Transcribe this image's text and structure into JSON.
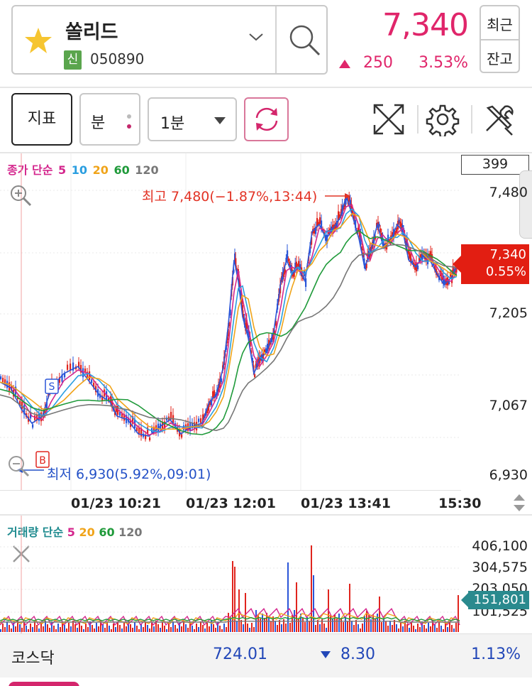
{
  "header": {
    "stock_name": "쏠리드",
    "badge": "신",
    "stock_code": "050890",
    "price": "7,340",
    "change": "250",
    "change_pct": "3.53%",
    "recent_label_top": "최근",
    "recent_label_bottom": "잔고",
    "accent_color": "#e0256a"
  },
  "toolbar": {
    "indicator_label": "지표",
    "minute_label": "분",
    "period_value": "1분"
  },
  "icons": [
    "star-icon",
    "chevron-down-icon",
    "search-icon",
    "refresh-icon",
    "expand-icon",
    "gear-icon",
    "tools-icon",
    "zoom-in-icon",
    "zoom-out-icon",
    "close-icon"
  ],
  "price_chart": {
    "legend_prefix": "종가 단순",
    "legend_periods": [
      "5",
      "10",
      "20",
      "60",
      "120"
    ],
    "legend_colors": [
      "#d4268d",
      "#2a9ee0",
      "#f0a41a",
      "#1f9a3a",
      "#777777"
    ],
    "top_value": "399",
    "y_labels": [
      "7,480",
      "7,205",
      "7,067",
      "6,930"
    ],
    "current_price": "7,340",
    "current_pct": "0.55%",
    "high_label": "최고 7,480(−1.87%,13:44)",
    "low_label": "최저 6,930(5.92%,09:01)",
    "marker_s": "S",
    "marker_b": "B",
    "x_labels": [
      "01/23 10:21",
      "01/23 12:01",
      "01/23 13:41",
      "15:30"
    ]
  },
  "volume_chart": {
    "legend_prefix": "거래량 단순",
    "legend_periods": [
      "5",
      "20",
      "60",
      "120"
    ],
    "legend_colors": [
      "#d4268d",
      "#f0a41a",
      "#1f9a3a",
      "#777777"
    ],
    "y_labels": [
      "406,100",
      "304,575",
      "203,050",
      "101,525"
    ],
    "current_volume": "151,801"
  },
  "footer": {
    "index_name": "코스닥",
    "index_value": "724.01",
    "index_change": "8.30",
    "index_pct": "1.13%"
  }
}
